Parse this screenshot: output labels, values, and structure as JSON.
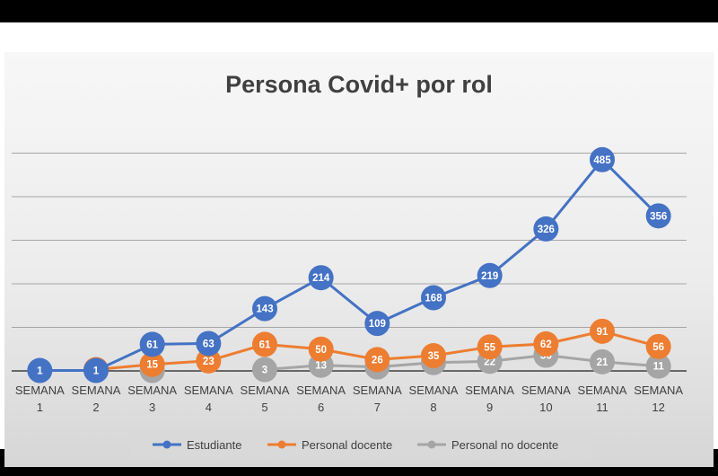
{
  "chart_data": {
    "type": "line",
    "title": "Persona Covid+ por rol",
    "categories": [
      [
        "SEMANA",
        "1"
      ],
      [
        "SEMANA",
        "2"
      ],
      [
        "SEMANA",
        "3"
      ],
      [
        "SEMANA",
        "4"
      ],
      [
        "SEMANA",
        "5"
      ],
      [
        "SEMANA",
        "6"
      ],
      [
        "SEMANA",
        "7"
      ],
      [
        "SEMANA",
        "8"
      ],
      [
        "SEMANA",
        "9"
      ],
      [
        "SEMANA",
        "10"
      ],
      [
        "SEMANA",
        "11"
      ],
      [
        "SEMANA",
        "12"
      ]
    ],
    "ylim": [
      0,
      600
    ],
    "grid": true,
    "legend": "bottom",
    "series": [
      {
        "name": "Estudiante",
        "color": "#4472C4",
        "values": [
          1,
          1,
          61,
          63,
          143,
          214,
          109,
          168,
          219,
          326,
          485,
          356
        ]
      },
      {
        "name": "Personal docente",
        "color": "#ED7D31",
        "values": [
          null,
          3,
          15,
          23,
          61,
          50,
          26,
          35,
          55,
          62,
          91,
          56
        ]
      },
      {
        "name": "Personal no docente",
        "color": "#A5A5A5",
        "values": [
          null,
          null,
          1,
          null,
          3,
          13,
          9,
          19,
          22,
          36,
          21,
          11
        ]
      }
    ]
  }
}
